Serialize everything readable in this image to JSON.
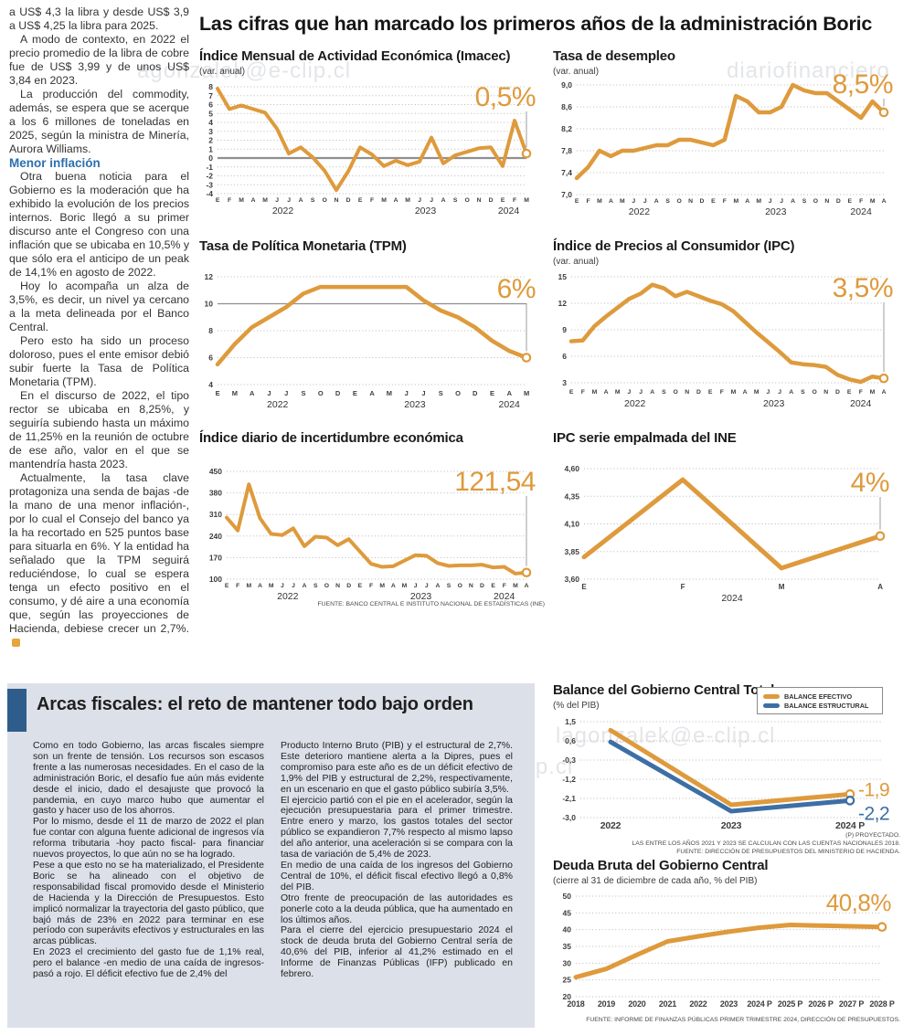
{
  "main_title": "Las cifras que han marcado los primeros años de la administración Boric",
  "article": {
    "paragraphs": [
      "a US$ 4,3 la libra y desde US$ 3,9 a US$ 4,25 la libra para 2025.",
      "A modo de contexto, en 2022 el precio promedio de la libra de cobre fue de US$ 3,99 y de unos US$ 3,84 en 2023.",
      "La producción del commodity, además, se espera que se acerque a los 6 millones de toneladas en 2025, según la ministra de Minería, Aurora Williams.",
      "Otra buena noticia para el Gobierno es la moderación que ha exhibido la evolución de los precios internos. Boric llegó a su primer discurso ante el Congreso con una inflación que se ubicaba en 10,5% y que sólo era el anticipo de un peak de 14,1% en agosto de 2022.",
      "Hoy lo acompaña un alza de 3,5%, es decir, un nivel ya cercano a la meta delineada por el Banco Central.",
      "Pero esto ha sido un proceso doloroso, pues el ente emisor debió subir fuerte la Tasa de Política Monetaria (TPM).",
      "En el discurso de 2022, el tipo rector se ubicaba en 8,25%, y seguiría subiendo hasta un máximo de 11,25% en la reunión de octubre de ese año, valor en el que se mantendría hasta 2023.",
      "Actualmente, la tasa clave protagoniza una senda de bajas -de la mano de una menor inflación-, por lo cual el Consejo del banco ya la ha recortado en 525 puntos base para situarla en 6%. Y la entidad ha señalado que la TPM seguirá reduciéndose, lo cual se espera tenga un efecto positivo en el consumo, y dé aire a una economía que, según las proyecciones de Hacienda, debiese crecer un 2,7%."
    ],
    "subhead": "Menor inflación"
  },
  "charts": {
    "imacec": {
      "type": "line",
      "title": "Índice Mensual de Actividad Económica (Imacec)",
      "subtitle": "(var. anual)",
      "big_label": "0,5%",
      "accent": "#de9a3c",
      "ylim": [
        -4,
        8
      ],
      "y_ticks": [
        {
          "v": 8,
          "label": "8"
        },
        {
          "v": 7,
          "label": "7"
        },
        {
          "v": 6,
          "label": "6"
        },
        {
          "v": 5,
          "label": "5"
        },
        {
          "v": 4,
          "label": "4"
        },
        {
          "v": 3,
          "label": "3"
        },
        {
          "v": 2,
          "label": "2"
        },
        {
          "v": 1,
          "label": "1"
        },
        {
          "v": 0,
          "label": "0"
        },
        {
          "v": -1,
          "label": "-1"
        },
        {
          "v": -2,
          "label": "-2"
        },
        {
          "v": -3,
          "label": "-3"
        },
        {
          "v": -4,
          "label": "-4"
        }
      ],
      "solid_y": [
        0
      ],
      "x_labels": [
        "E",
        "F",
        "M",
        "A",
        "M",
        "J",
        "J",
        "A",
        "S",
        "O",
        "N",
        "D",
        "E",
        "F",
        "M",
        "A",
        "M",
        "J",
        "J",
        "A",
        "S",
        "O",
        "N",
        "D",
        "E",
        "F",
        "M"
      ],
      "year_ticks": [
        {
          "label": "2022",
          "i": 5.5
        },
        {
          "label": "2023",
          "i": 17.5
        },
        {
          "label": "2024",
          "i": 24.5
        }
      ],
      "connector": true,
      "series": [
        {
          "name": "Imacec",
          "color": "#de9a3c",
          "end_dot": true,
          "values": [
            7.8,
            5.5,
            5.9,
            5.5,
            5.1,
            3.3,
            0.5,
            1.2,
            0.1,
            -1.4,
            -3.6,
            -1.5,
            1.2,
            0.4,
            -0.9,
            -0.3,
            -0.8,
            -0.4,
            2.3,
            -0.6,
            0.3,
            0.7,
            1.1,
            1.2,
            -0.9,
            4.2,
            0.5
          ]
        }
      ]
    },
    "desempleo": {
      "type": "line",
      "title": "Tasa de desempleo",
      "subtitle": "(var. anual)",
      "big_label": "8,5%",
      "accent": "#de9a3c",
      "ylim": [
        7.0,
        9.0
      ],
      "y_ticks": [
        {
          "v": 9.0,
          "label": "9,0"
        },
        {
          "v": 8.6,
          "label": "8,6"
        },
        {
          "v": 8.2,
          "label": "8,2"
        },
        {
          "v": 7.8,
          "label": "7,8"
        },
        {
          "v": 7.4,
          "label": "7,4"
        },
        {
          "v": 7.0,
          "label": "7,0"
        }
      ],
      "x_labels": [
        "E",
        "F",
        "M",
        "A",
        "M",
        "J",
        "J",
        "A",
        "S",
        "O",
        "N",
        "D",
        "E",
        "F",
        "M",
        "A",
        "M",
        "J",
        "J",
        "A",
        "S",
        "O",
        "N",
        "D",
        "E",
        "F",
        "M",
        "A"
      ],
      "year_ticks": [
        {
          "label": "2022",
          "i": 5.5
        },
        {
          "label": "2023",
          "i": 17.5
        },
        {
          "label": "2024",
          "i": 25
        }
      ],
      "connector": true,
      "series": [
        {
          "name": "Tasa de desempleo",
          "color": "#de9a3c",
          "end_dot": true,
          "values": [
            7.3,
            7.5,
            7.8,
            7.7,
            7.8,
            7.8,
            7.85,
            7.9,
            7.9,
            8.0,
            8.0,
            7.95,
            7.9,
            8.0,
            8.8,
            8.7,
            8.5,
            8.5,
            8.6,
            9.0,
            8.9,
            8.85,
            8.85,
            8.7,
            8.55,
            8.4,
            8.7,
            8.5
          ]
        }
      ]
    },
    "tpm": {
      "type": "line",
      "title": "Tasa de Política Monetaria (TPM)",
      "subtitle": "",
      "big_label": "6%",
      "accent": "#de9a3c",
      "ylim": [
        4,
        12
      ],
      "y_ticks": [
        {
          "v": 12,
          "label": "12"
        },
        {
          "v": 10,
          "label": "10"
        },
        {
          "v": 8,
          "label": "8"
        },
        {
          "v": 6,
          "label": "6"
        },
        {
          "v": 4,
          "label": "4"
        }
      ],
      "solid_y": [
        10
      ],
      "x_labels": [
        "E",
        "M",
        "A",
        "J",
        "J",
        "S",
        "O",
        "D",
        "E",
        "A",
        "M",
        "J",
        "J",
        "S",
        "O",
        "D",
        "E",
        "A",
        "M"
      ],
      "year_ticks": [
        {
          "label": "2022",
          "i": 3.5
        },
        {
          "label": "2023",
          "i": 11.5
        },
        {
          "label": "2024",
          "i": 17
        }
      ],
      "connector": true,
      "series": [
        {
          "name": "TPM",
          "color": "#de9a3c",
          "end_dot": true,
          "values": [
            5.5,
            7.0,
            8.25,
            9.0,
            9.75,
            10.75,
            11.25,
            11.25,
            11.25,
            11.25,
            11.25,
            11.25,
            10.25,
            9.5,
            9.0,
            8.25,
            7.25,
            6.5,
            6.0
          ]
        }
      ]
    },
    "ipc": {
      "type": "line",
      "title": "Índice de Precios al Consumidor (IPC)",
      "subtitle": "(var. anual)",
      "big_label": "3,5%",
      "accent": "#de9a3c",
      "ylim": [
        3,
        15
      ],
      "y_ticks": [
        {
          "v": 15,
          "label": "15"
        },
        {
          "v": 12,
          "label": "12"
        },
        {
          "v": 9,
          "label": "9"
        },
        {
          "v": 6,
          "label": "6"
        },
        {
          "v": 3,
          "label": "3"
        }
      ],
      "x_labels": [
        "E",
        "F",
        "M",
        "A",
        "M",
        "J",
        "J",
        "A",
        "S",
        "O",
        "N",
        "D",
        "E",
        "F",
        "M",
        "A",
        "M",
        "J",
        "J",
        "A",
        "S",
        "O",
        "N",
        "D",
        "E",
        "F",
        "M",
        "A"
      ],
      "year_ticks": [
        {
          "label": "2022",
          "i": 5.5
        },
        {
          "label": "2023",
          "i": 17.5
        },
        {
          "label": "2024",
          "i": 25
        }
      ],
      "connector": true,
      "series": [
        {
          "name": "IPC",
          "color": "#de9a3c",
          "end_dot": true,
          "values": [
            7.7,
            7.8,
            9.4,
            10.5,
            11.5,
            12.5,
            13.1,
            14.1,
            13.7,
            12.8,
            13.3,
            12.8,
            12.3,
            11.9,
            11.1,
            9.9,
            8.7,
            7.6,
            6.5,
            5.3,
            5.1,
            5.0,
            4.8,
            3.9,
            3.4,
            3.1,
            3.7,
            3.5
          ]
        }
      ]
    },
    "incert": {
      "type": "line",
      "title": "Índice diario de incertidumbre económica",
      "subtitle": "",
      "big_label": "121,54",
      "accent": "#de9a3c",
      "ylim": [
        100,
        450
      ],
      "y_ticks": [
        {
          "v": 450,
          "label": "450"
        },
        {
          "v": 380,
          "label": "380"
        },
        {
          "v": 310,
          "label": "310"
        },
        {
          "v": 240,
          "label": "240"
        },
        {
          "v": 170,
          "label": "170"
        },
        {
          "v": 100,
          "label": "100"
        }
      ],
      "x_labels": [
        "E",
        "F",
        "M",
        "A",
        "M",
        "J",
        "J",
        "A",
        "S",
        "O",
        "N",
        "D",
        "E",
        "F",
        "M",
        "A",
        "M",
        "J",
        "J",
        "A",
        "S",
        "O",
        "N",
        "D",
        "E",
        "F",
        "M",
        "A"
      ],
      "year_ticks": [
        {
          "label": "2022",
          "i": 5.5
        },
        {
          "label": "2023",
          "i": 17.5
        },
        {
          "label": "2024",
          "i": 25
        }
      ],
      "connector": true,
      "source": "FUENTE: BANCO CENTRAL E INSTITUTO NACIONAL DE ESTADÍSTICAS (INE)",
      "series": [
        {
          "name": "Incertidumbre económica",
          "color": "#de9a3c",
          "end_dot": true,
          "values": [
            300,
            258,
            408,
            298,
            247,
            243,
            265,
            207,
            238,
            235,
            210,
            230,
            190,
            150,
            140,
            142,
            160,
            178,
            176,
            152,
            143,
            145,
            145,
            147,
            138,
            140,
            118,
            121.54
          ]
        }
      ]
    },
    "ipcemp": {
      "type": "line",
      "title": "IPC serie empalmada del INE",
      "subtitle": "",
      "big_label": "4%",
      "accent": "#de9a3c",
      "ylim": [
        3.6,
        4.6
      ],
      "y_ticks": [
        {
          "v": 4.6,
          "label": "4,60"
        },
        {
          "v": 4.35,
          "label": "4,35"
        },
        {
          "v": 4.1,
          "label": "4,10"
        },
        {
          "v": 3.85,
          "label": "3,85"
        },
        {
          "v": 3.6,
          "label": "3,60"
        }
      ],
      "x_labels": [
        "E",
        "F",
        "M",
        "A"
      ],
      "year_ticks": [
        {
          "label": "2024",
          "i": 1.5
        }
      ],
      "connector": true,
      "series": [
        {
          "name": "IPC serie empalmada",
          "color": "#de9a3c",
          "end_dot": true,
          "values": [
            3.8,
            4.5,
            3.7,
            3.99
          ]
        }
      ]
    },
    "balance": {
      "type": "line",
      "title": "Balance del Gobierno Central Total",
      "subtitle": "(% del PIB)",
      "accent": "#de9a3c",
      "ylim": [
        -3.0,
        1.5
      ],
      "y_ticks": [
        {
          "v": 1.5,
          "label": "1,5"
        },
        {
          "v": 0.6,
          "label": "0,6"
        },
        {
          "v": -0.3,
          "label": "-0,3"
        },
        {
          "v": -1.2,
          "label": "-1,2"
        },
        {
          "v": -2.1,
          "label": "-2,1"
        },
        {
          "v": -3.0,
          "label": "-3,0"
        }
      ],
      "x_labels": [
        "2022",
        "2023",
        "2024 P"
      ],
      "series": [
        {
          "name": "BALANCE EFECTIVO",
          "color": "#de9a3c",
          "end_dot": true,
          "values": [
            1.1,
            -2.4,
            -1.9
          ]
        },
        {
          "name": "BALANCE ESTRUCTURAL",
          "color": "#3d6fa5",
          "end_dot": true,
          "values": [
            0.55,
            -2.7,
            -2.2
          ]
        }
      ],
      "end_labels": [
        {
          "text": "-1,9",
          "color": "#de9a3c",
          "dy": -2
        },
        {
          "text": "-2,2",
          "color": "#3d6fa5",
          "dy": 17
        }
      ],
      "footnotes": [
        "(P) PROYECTADO.",
        "LAS ENTRE LOS AÑOS 2021 Y 2023 SE CALCULAN  CON LAS CUENTAS NACIONALES 2018.",
        "FUENTE: DIRECCIÓN DE PRESUPUESTOS DEL MINISTERIO DE HACIENDA."
      ]
    },
    "deuda": {
      "type": "line",
      "title": "Deuda Bruta del Gobierno Central",
      "subtitle": "(cierre al 31 de diciembre de cada año, % del PIB)",
      "big_label": "40,8%",
      "accent": "#de9a3c",
      "ylim": [
        20,
        50
      ],
      "y_ticks": [
        {
          "v": 50,
          "label": "50"
        },
        {
          "v": 45,
          "label": "45"
        },
        {
          "v": 40,
          "label": "40"
        },
        {
          "v": 35,
          "label": "35"
        },
        {
          "v": 30,
          "label": "30"
        },
        {
          "v": 25,
          "label": "25"
        },
        {
          "v": 20,
          "label": "20"
        }
      ],
      "x_labels": [
        "2018",
        "2019",
        "2020",
        "2021",
        "2022",
        "2023",
        "2024 P",
        "2025 P",
        "2026 P",
        "2027 P",
        "2028 P"
      ],
      "source": "FUENTE: INFORME DE FINANZAS PÚBLICAS PRIMER TRIMESTRE 2024, DIRECCIÓN DE PRESUPUESTOS.",
      "series": [
        {
          "name": "Deuda bruta",
          "color": "#de9a3c",
          "end_dot": true,
          "values": [
            25.8,
            28.3,
            32.5,
            36.5,
            38.0,
            39.4,
            40.6,
            41.4,
            41.2,
            41.0,
            40.8
          ]
        }
      ]
    }
  },
  "panel": {
    "headline": "Arcas fiscales: el reto de mantener todo bajo orden",
    "col1": [
      "Como en todo Gobierno, las arcas fiscales siempre son un frente de tensión. Los recursos son escasos frente a las numerosas necesidades. En el caso de la administración Boric, el desafío fue aún más evidente desde el inicio, dado el desajuste que provocó la pandemia, en cuyo marco hubo que aumentar el gasto y hacer uso de los ahorros.",
      "Por lo mismo, desde el 11 de marzo de 2022 el plan fue contar con alguna fuente adicional de ingresos vía reforma tributaria -hoy pacto fiscal- para financiar nuevos proyectos, lo que aún no se ha logrado.",
      "Pese a que esto no se ha materializado, el Presidente Boric se ha alineado con el objetivo de responsabilidad fiscal promovido desde el Ministerio de Hacienda y la Dirección de Presupuestos. Esto implicó normalizar la trayectoria del gasto público, que bajó más de 23% en 2022 para terminar en ese período con superávits efectivos y estructurales en las arcas públicas.",
      "En 2023 el crecimiento del gasto fue de 1,1% real, pero el balance -en medio de una caída de ingresos-  pasó a rojo. El déficit efectivo fue de 2,4% del"
    ],
    "col2": [
      "Producto Interno Bruto (PIB) y el estructural de 2,7%. Este deterioro mantiene alerta a la Dipres, pues el compromiso para este año es de un déficit efectivo de 1,9% del PIB y estructural de 2,2%, respectivamente, en un escenario en que el gasto público subiría 3,5%.",
      "El ejercicio partió con el pie en el acelerador, según la ejecución presupuestaria para el primer trimestre. Entre enero y marzo, los gastos totales del sector público se expandieron 7,7% respecto al mismo lapso del año anterior, una aceleración si se compara con la tasa de variación de 5,4% de 2023.",
      "En medio de una caída de los ingresos del Gobierno Central de 10%, el déficit fiscal efectivo llegó a 0,8% del PIB.",
      "Otro frente de preocupación de las autoridades es ponerle coto a la deuda pública, que ha aumentado en los últimos años.",
      "Para el cierre del ejercicio presupuestario 2024 el stock de deuda bruta del Gobierno Central sería de 40,6% del PIB, inferior al 41,2% estimado en el Informe de Finanzas Públicas (IFP) publicado en febrero."
    ]
  },
  "watermarks": [
    "agonzalek@e-clip.cl",
    "diariofinanciero",
    "lagonzalek@e-clip.cl",
    "ero#@gonzalek@e-clip.cl"
  ]
}
